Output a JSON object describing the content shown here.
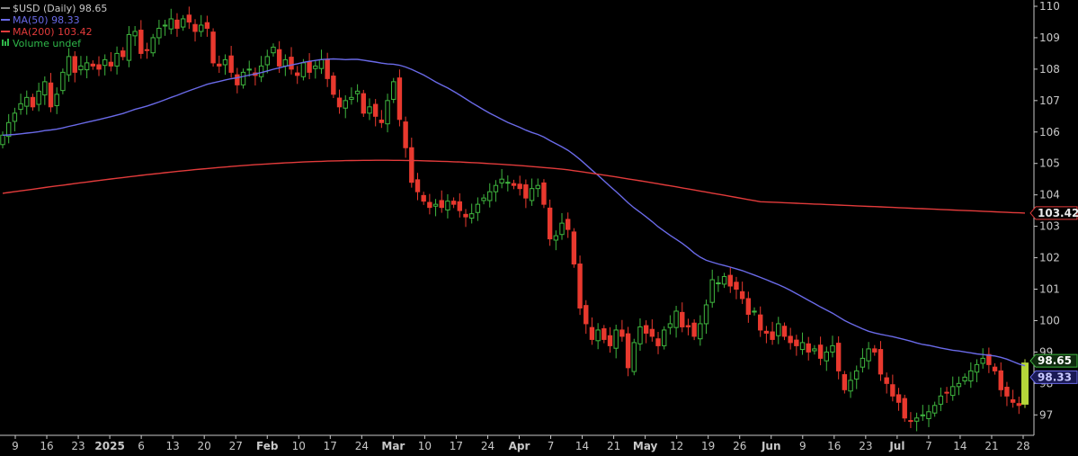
{
  "chart_data": {
    "type": "candlestick",
    "title": "$USD (Daily) 98.65",
    "y_ticks": [
      97,
      98,
      99,
      100,
      101,
      102,
      103,
      104,
      105,
      106,
      107,
      108,
      109,
      110
    ],
    "ylim": [
      96.35,
      110.2
    ],
    "x_tick_labels": [
      "9",
      "16",
      "23",
      "2025",
      "6",
      "13",
      "20",
      "27",
      "Feb",
      "10",
      "17",
      "24",
      "Mar",
      "10",
      "17",
      "24",
      "Apr",
      "7",
      "14",
      "21",
      "May",
      "12",
      "19",
      "26",
      "Jun",
      "9",
      "16",
      "23",
      "Jul",
      "7",
      "14",
      "21",
      "28"
    ],
    "x_month_labels": [
      "2025",
      "Feb",
      "Mar",
      "Apr",
      "May",
      "Jun",
      "Jul"
    ],
    "legend": [
      {
        "key": "price",
        "label": "$USD (Daily) 98.65",
        "color": "#8a8a8a"
      },
      {
        "key": "ma50",
        "label": "MA(50) 98.33",
        "color": "#6a6ae8"
      },
      {
        "key": "ma200",
        "label": "MA(200) 103.42",
        "color": "#e23b3b"
      },
      {
        "key": "volume",
        "label": "Volume undef",
        "color": "#2fb84a"
      }
    ],
    "last_price_label": "98.65",
    "ma50_label": "98.33",
    "ma200_label": "103.42",
    "colors": {
      "up": "#3fb63f",
      "down": "#e8392e",
      "ma50": "#6a6ae8",
      "ma200": "#e23b3b",
      "axis_text": "#c8c8c8",
      "grid_bg": "#000000",
      "last_bar": "#b5d63a"
    },
    "closes": [
      105.9,
      106.3,
      106.6,
      106.9,
      107.1,
      106.8,
      107.3,
      107.6,
      106.8,
      107.2,
      107.9,
      108.4,
      107.9,
      108.1,
      108.2,
      108.1,
      108.0,
      108.3,
      108.1,
      108.5,
      108.4,
      109.1,
      109.2,
      108.5,
      108.6,
      109.0,
      109.3,
      109.4,
      109.6,
      109.3,
      109.6,
      109.5,
      109.2,
      109.4,
      109.3,
      108.2,
      108.1,
      108.3,
      107.9,
      107.5,
      107.9,
      108.0,
      107.8,
      108.1,
      108.4,
      108.7,
      108.1,
      108.3,
      108.0,
      107.8,
      108.2,
      107.9,
      108.1,
      108.3,
      107.7,
      107.2,
      106.8,
      107.0,
      107.1,
      107.3,
      106.6,
      106.8,
      106.5,
      106.3,
      107.0,
      107.6,
      106.4,
      105.5,
      104.4,
      104.1,
      103.8,
      103.6,
      103.7,
      103.6,
      103.8,
      103.7,
      103.5,
      103.3,
      103.4,
      103.7,
      103.9,
      104.1,
      104.3,
      104.5,
      104.4,
      104.3,
      104.2,
      103.9,
      104.2,
      104.3,
      103.7,
      102.6,
      102.7,
      103.1,
      102.9,
      101.8,
      100.4,
      99.9,
      99.4,
      99.7,
      99.4,
      99.2,
      99.7,
      99.5,
      98.5,
      99.3,
      99.8,
      99.6,
      99.5,
      99.2,
      99.7,
      99.9,
      100.3,
      99.8,
      99.8,
      99.5,
      99.9,
      100.5,
      101.3,
      101.2,
      101.4,
      101.1,
      101.0,
      100.7,
      100.2,
      100.3,
      99.7,
      99.6,
      99.4,
      99.9,
      99.5,
      99.3,
      99.2,
      99.3,
      99.0,
      99.1,
      98.8,
      99.0,
      99.2,
      98.4,
      97.8,
      98.1,
      98.4,
      98.8,
      99.1,
      99.0,
      98.3,
      98.0,
      97.6,
      97.4,
      96.9,
      96.8,
      96.9,
      97.0,
      97.1,
      97.3,
      97.6,
      97.7,
      97.9,
      98.0,
      98.2,
      98.4,
      98.6,
      98.8,
      98.6,
      98.4,
      97.8,
      97.6,
      97.4,
      97.3,
      98.65
    ]
  }
}
